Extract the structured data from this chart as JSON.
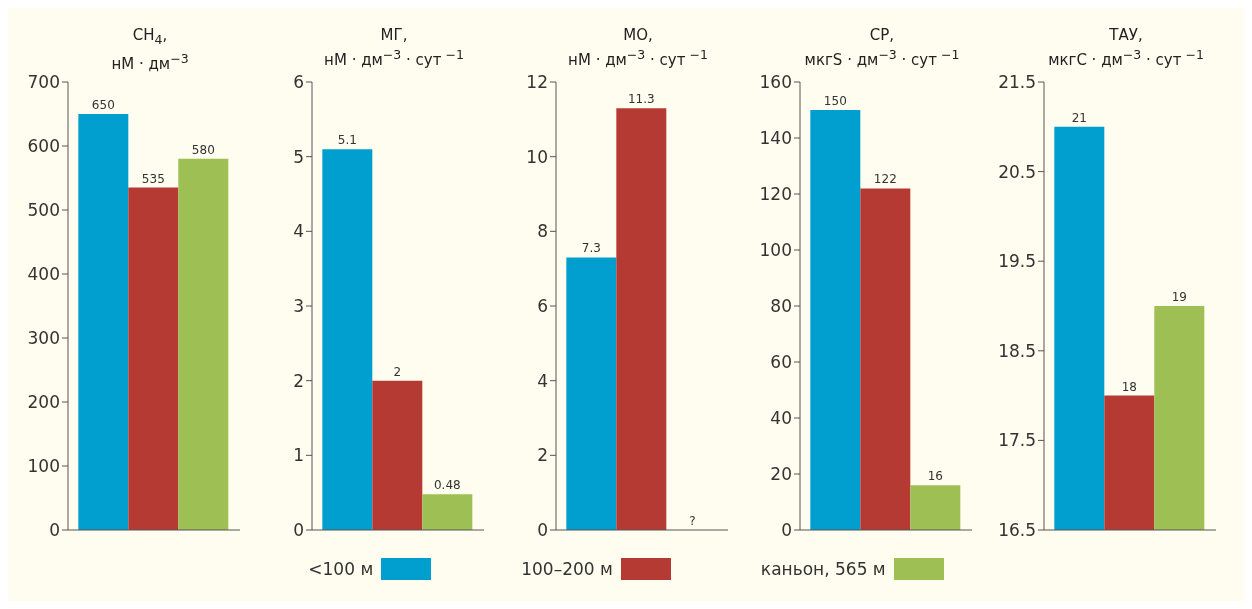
{
  "chart_data": [
    {
      "type": "bar",
      "title": "CH$_{4}$,",
      "subtitle": "нМ · дм$^{−3}$",
      "categories": [
        null
      ],
      "ylim": [
        0,
        700
      ],
      "yticks": [
        0,
        100,
        200,
        300,
        400,
        500,
        600,
        700
      ],
      "data_labels": true,
      "legend": "bottom",
      "series": [
        {
          "name": "<100 м",
          "color": "#009fd0",
          "values": [
            650
          ]
        },
        {
          "name": "100–200 м",
          "color": "#b63a34",
          "values": [
            535
          ]
        },
        {
          "name": "каньон, 565 м",
          "color": "#9dbf53",
          "values": [
            580
          ]
        }
      ]
    },
    {
      "type": "bar",
      "title": "МГ,",
      "subtitle": "нМ · дм$^{−3}$ · сут$^{ −1}$",
      "categories": [
        null
      ],
      "ylim": [
        0,
        6
      ],
      "yticks": [
        0,
        1,
        2,
        3,
        4,
        5,
        6
      ],
      "data_labels": true,
      "series": [
        {
          "color": "#009fd0",
          "values": [
            5.1
          ]
        },
        {
          "color": "#b63a34",
          "values": [
            2
          ]
        },
        {
          "color": "#9dbf53",
          "values": [
            0.48
          ]
        }
      ]
    },
    {
      "type": "bar",
      "title": "МО,",
      "subtitle": "нМ · дм$^{−3}$ · сут$^{ −1}$",
      "categories": [
        null
      ],
      "ylim": [
        0,
        12
      ],
      "yticks": [
        0,
        2,
        4,
        6,
        8,
        10,
        12
      ],
      "data_labels": true,
      "series": [
        {
          "color": "#009fd0",
          "values": [
            7.3
          ]
        },
        {
          "color": "#b63a34",
          "values": [
            11.3
          ]
        },
        {
          "color": "#9dbf53",
          "values": [
            null
          ],
          "value_labels": [
            "?"
          ]
        }
      ]
    },
    {
      "type": "bar",
      "title": "СР,",
      "subtitle": "мкгS · дм$^{−3}$ · сут$^{ −1}$",
      "categories": [
        null
      ],
      "ylim": [
        0,
        160
      ],
      "yticks": [
        0,
        20,
        40,
        60,
        80,
        100,
        120,
        140,
        160
      ],
      "data_labels": true,
      "series": [
        {
          "color": "#009fd0",
          "values": [
            150
          ]
        },
        {
          "color": "#b63a34",
          "values": [
            122
          ]
        },
        {
          "color": "#9dbf53",
          "values": [
            16
          ]
        }
      ]
    },
    {
      "type": "bar",
      "title": "ТАУ,",
      "subtitle": "мкгС · дм$^{−3}$ · сут$^{ −1}$",
      "categories": [
        null
      ],
      "ylim": [
        16.5,
        21.5
      ],
      "yticks": [
        16.5,
        17.5,
        18.5,
        19.5,
        20.5,
        21.5
      ],
      "data_labels": true,
      "series": [
        {
          "color": "#009fd0",
          "values": [
            21
          ]
        },
        {
          "color": "#b63a34",
          "values": [
            18
          ]
        },
        {
          "color": "#9dbf53",
          "values": [
            19
          ]
        }
      ]
    }
  ]
}
